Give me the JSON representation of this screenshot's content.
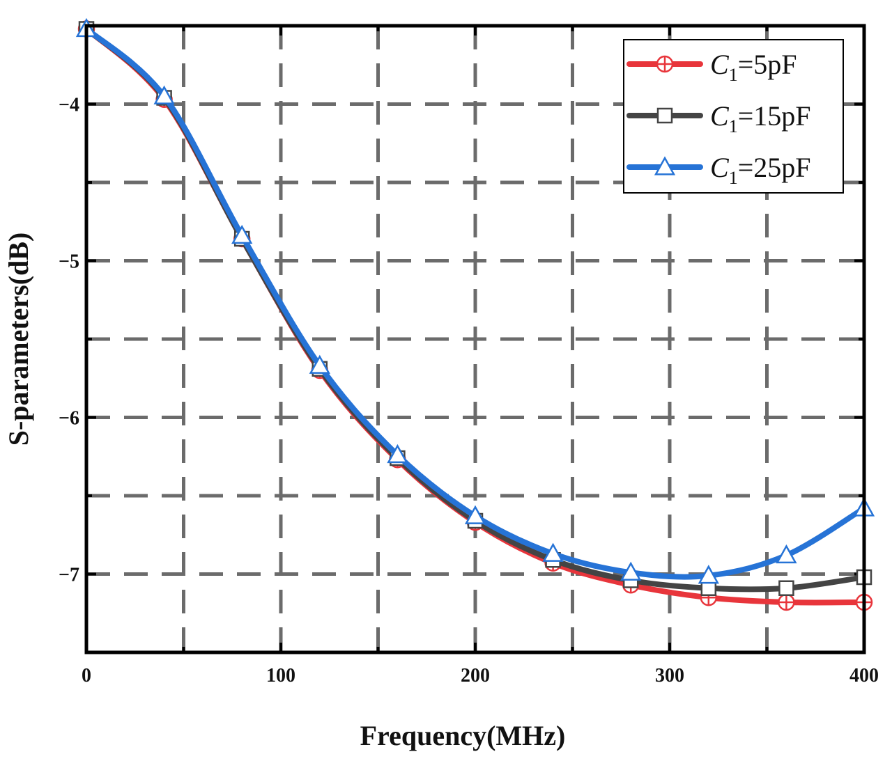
{
  "chart_data": {
    "type": "line",
    "title": "",
    "xlabel": "Frequency(MHz)",
    "ylabel": "S-parameters(dB)",
    "xlim": [
      0,
      400
    ],
    "ylim": [
      -7.5,
      -3.5
    ],
    "xticks": [
      0,
      100,
      200,
      300,
      400
    ],
    "xtick_labels": [
      "0",
      "100",
      "200",
      "300",
      "400"
    ],
    "yticks": [
      -4,
      -5,
      -6,
      -7
    ],
    "ytick_labels": [
      "−4",
      "−5",
      "−6",
      "−7"
    ],
    "grid": true,
    "legend_position": "top-right",
    "x": [
      0,
      40,
      80,
      120,
      160,
      200,
      240,
      280,
      320,
      360,
      400
    ],
    "series": [
      {
        "name": "C1=5pF",
        "legend_main": "C",
        "legend_sub": "1",
        "legend_rest": "=5pF",
        "color": "#e8353b",
        "marker": "circle-plus",
        "values": [
          -3.52,
          -3.97,
          -4.86,
          -5.7,
          -6.27,
          -6.67,
          -6.93,
          -7.07,
          -7.15,
          -7.18,
          -7.18
        ]
      },
      {
        "name": "C1=15pF",
        "legend_main": "C",
        "legend_sub": "1",
        "legend_rest": "=15pF",
        "color": "#444444",
        "marker": "square",
        "values": [
          -3.52,
          -3.96,
          -4.86,
          -5.69,
          -6.26,
          -6.66,
          -6.91,
          -7.04,
          -7.09,
          -7.09,
          -7.02
        ]
      },
      {
        "name": "C1=25pF",
        "legend_main": "C",
        "legend_sub": "1",
        "legend_rest": "=25pF",
        "color": "#2673d6",
        "marker": "triangle",
        "values": [
          -3.52,
          -3.95,
          -4.84,
          -5.67,
          -6.24,
          -6.63,
          -6.87,
          -6.99,
          -7.01,
          -6.88,
          -6.58
        ]
      }
    ]
  }
}
